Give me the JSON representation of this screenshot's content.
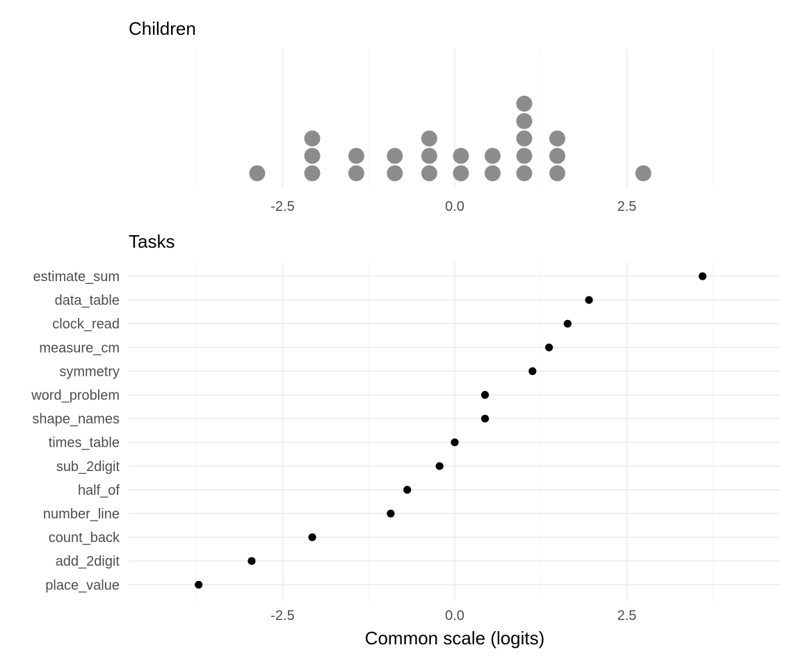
{
  "chart_data": [
    {
      "type": "scatter",
      "panel": "children",
      "title": "Children",
      "xlabel": "",
      "ylabel": "",
      "xlim": [
        -4.6,
        4.7
      ],
      "x_ticks": [
        -2.5,
        0.0,
        2.5
      ],
      "x_tick_labels": [
        "-2.5",
        "0.0",
        "2.5"
      ],
      "grid": true,
      "point_color": "#8c8c8c",
      "points": [
        {
          "x": -2.87,
          "stack": 1
        },
        {
          "x": -2.07,
          "stack": 1
        },
        {
          "x": -2.07,
          "stack": 2
        },
        {
          "x": -2.07,
          "stack": 3
        },
        {
          "x": -1.43,
          "stack": 1
        },
        {
          "x": -1.43,
          "stack": 2
        },
        {
          "x": -0.87,
          "stack": 1
        },
        {
          "x": -0.87,
          "stack": 2
        },
        {
          "x": -0.37,
          "stack": 1
        },
        {
          "x": -0.37,
          "stack": 2
        },
        {
          "x": -0.37,
          "stack": 3
        },
        {
          "x": 0.09,
          "stack": 1
        },
        {
          "x": 0.09,
          "stack": 2
        },
        {
          "x": 0.55,
          "stack": 1
        },
        {
          "x": 0.55,
          "stack": 2
        },
        {
          "x": 1.01,
          "stack": 1
        },
        {
          "x": 1.01,
          "stack": 2
        },
        {
          "x": 1.01,
          "stack": 3
        },
        {
          "x": 1.01,
          "stack": 4
        },
        {
          "x": 1.01,
          "stack": 5
        },
        {
          "x": 1.49,
          "stack": 1
        },
        {
          "x": 1.49,
          "stack": 2
        },
        {
          "x": 1.49,
          "stack": 3
        },
        {
          "x": 2.74,
          "stack": 1
        }
      ]
    },
    {
      "type": "scatter",
      "panel": "tasks",
      "title": "Tasks",
      "xlabel": "Common scale (logits)",
      "ylabel": "",
      "xlim": [
        -4.6,
        4.7
      ],
      "x_ticks": [
        -2.5,
        0.0,
        2.5
      ],
      "x_tick_labels": [
        "-2.5",
        "0.0",
        "2.5"
      ],
      "grid": true,
      "point_color": "#000000",
      "categories": [
        "estimate_sum",
        "data_table",
        "clock_read",
        "measure_cm",
        "symmetry",
        "word_problem",
        "shape_names",
        "times_table",
        "sub_2digit",
        "half_of",
        "number_line",
        "count_back",
        "add_2digit",
        "place_value"
      ],
      "values": [
        3.6,
        1.95,
        1.64,
        1.37,
        1.13,
        0.44,
        0.44,
        0.0,
        -0.22,
        -0.69,
        -0.93,
        -2.07,
        -2.95,
        -3.72
      ]
    }
  ]
}
